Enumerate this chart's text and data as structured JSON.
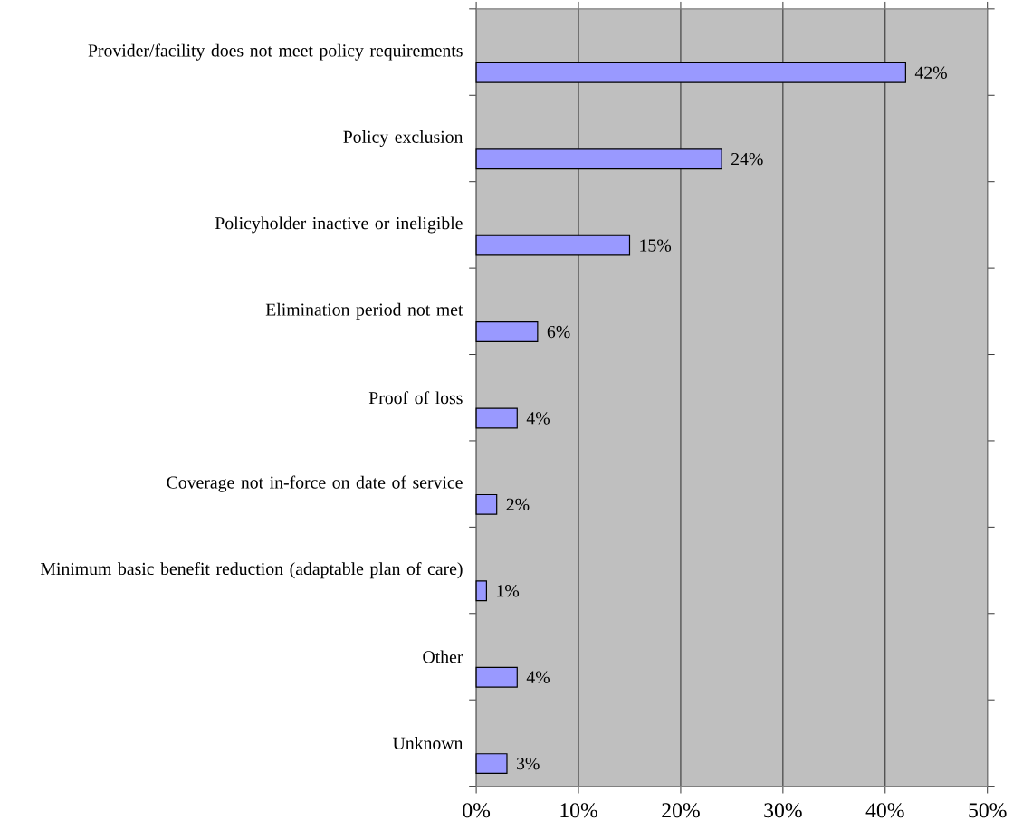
{
  "chart_data": {
    "type": "bar",
    "orientation": "horizontal",
    "categories": [
      "Provider/facility does not meet policy requirements",
      "Policy exclusion",
      "Policyholder inactive or ineligible",
      "Elimination period not met",
      "Proof of loss",
      "Coverage not in-force on date of service",
      "Minimum basic benefit reduction (adaptable plan of care)",
      "Other",
      "Unknown"
    ],
    "values": [
      42,
      24,
      15,
      6,
      4,
      2,
      1,
      4,
      3
    ],
    "value_labels": [
      "42%",
      "24%",
      "15%",
      "6%",
      "4%",
      "2%",
      "1%",
      "4%",
      "3%"
    ],
    "color": "#9999ff",
    "xlim": [
      0,
      50
    ],
    "xticks": [
      {
        "value": 0,
        "label": "0%"
      },
      {
        "value": 10,
        "label": "10%"
      },
      {
        "value": 20,
        "label": "20%"
      },
      {
        "value": 30,
        "label": "30%"
      },
      {
        "value": 40,
        "label": "40%"
      },
      {
        "value": 50,
        "label": "50%"
      }
    ],
    "grid": "x"
  }
}
